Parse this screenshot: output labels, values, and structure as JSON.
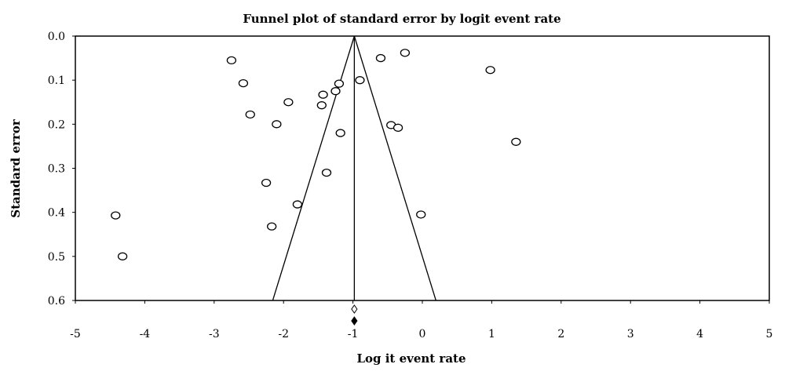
{
  "chart_data": {
    "type": "scatter",
    "title": "Funnel plot of standard error by logit event rate",
    "xlabel": "Log it event rate",
    "ylabel": "Standard error",
    "xlim": [
      -5,
      5
    ],
    "ylim": [
      0,
      0.6
    ],
    "y_inverted": true,
    "grid": false,
    "xticks": [
      "-5",
      "-4",
      "-3",
      "-2",
      "-1",
      "0",
      "1",
      "2",
      "3",
      "4",
      "5"
    ],
    "yticks": [
      "0.0",
      "0.1",
      "0.2",
      "0.3",
      "0.4",
      "0.5",
      "0.6"
    ],
    "summary_estimate": -0.98,
    "studies": [
      {
        "x": -2.75,
        "y": 0.055
      },
      {
        "x": -2.58,
        "y": 0.107
      },
      {
        "x": -2.48,
        "y": 0.178
      },
      {
        "x": -2.1,
        "y": 0.2
      },
      {
        "x": -1.93,
        "y": 0.15
      },
      {
        "x": -1.45,
        "y": 0.157
      },
      {
        "x": -1.43,
        "y": 0.133
      },
      {
        "x": -1.25,
        "y": 0.125
      },
      {
        "x": -1.2,
        "y": 0.108
      },
      {
        "x": -1.18,
        "y": 0.22
      },
      {
        "x": -1.38,
        "y": 0.31
      },
      {
        "x": -2.25,
        "y": 0.333
      },
      {
        "x": -1.8,
        "y": 0.382
      },
      {
        "x": -2.17,
        "y": 0.432
      },
      {
        "x": -4.42,
        "y": 0.407
      },
      {
        "x": -4.32,
        "y": 0.5
      },
      {
        "x": -0.9,
        "y": 0.1
      },
      {
        "x": -0.6,
        "y": 0.05
      },
      {
        "x": -0.25,
        "y": 0.038
      },
      {
        "x": -0.45,
        "y": 0.202
      },
      {
        "x": -0.35,
        "y": 0.208
      },
      {
        "x": -0.02,
        "y": 0.405
      },
      {
        "x": 0.98,
        "y": 0.077
      },
      {
        "x": 1.35,
        "y": 0.24
      }
    ],
    "markers": [
      {
        "name": "imputed-summary",
        "x": -0.98,
        "shape": "open-diamond"
      },
      {
        "name": "observed-summary",
        "x": -0.98,
        "shape": "filled-diamond"
      }
    ]
  }
}
